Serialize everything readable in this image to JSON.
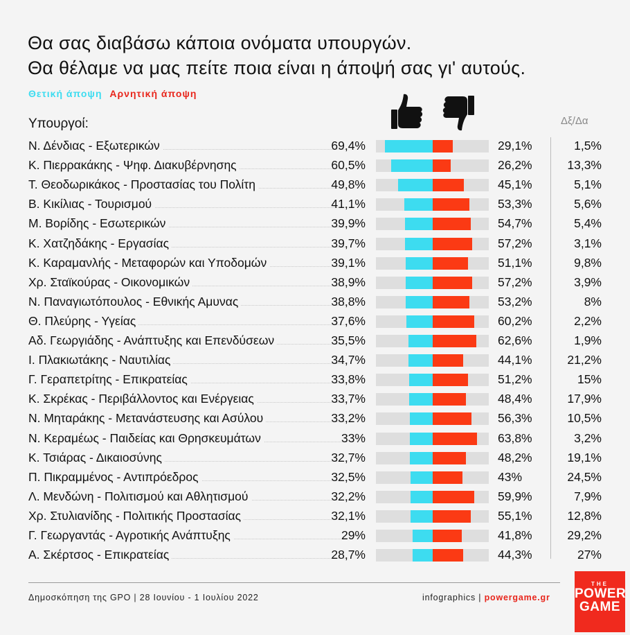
{
  "title_line1": "Θα σας διαβάσω κάποια ονόματα υπουργών.",
  "title_line2": "Θα θέλαμε να μας πείτε ποια είναι η άποψή σας γι' αυτούς.",
  "legend": {
    "positive": "Θετική άποψη",
    "negative": "Αρνητική άποψη"
  },
  "headers": {
    "ministers": "Υπουργοί:",
    "dk": "Δξ/Δα"
  },
  "colors": {
    "positive": "#3ddcf0",
    "negative": "#fb3a14",
    "track": "#dedede",
    "brand": "#f02a1e"
  },
  "icons": {
    "positive": "thumbs-up-icon",
    "negative": "thumbs-down-icon"
  },
  "footer": {
    "source": "Δημοσκόπηση της GPO | 28 Ιουνίου - 1 Ιουλίου 2022",
    "credit_prefix": "infographics | ",
    "credit_site": "powergame.gr"
  },
  "logo": {
    "the": "THE",
    "line1": "POWER",
    "line2": "GAME"
  },
  "chart_data": {
    "type": "bar",
    "orientation": "horizontal-diverging",
    "unit": "%",
    "categories": [
      "Ν. Δένδιας - Εξωτερικών",
      "Κ. Πιερρακάκης - Ψηφ. Διακυβέρνησης",
      "Τ. Θεοδωρικάκος - Προστασίας του Πολίτη",
      "Β. Κικίλιας - Τουρισμού",
      "Μ. Βορίδης - Εσωτερικών",
      "Κ. Χατζηδάκης - Εργασίας",
      "Κ. Καραμανλής - Μεταφορών και Υποδομών",
      "Χρ. Σταϊκούρας - Οικονομικών",
      "Ν. Παναγιωτόπουλος - Εθνικής Αμυνας",
      "Θ. Πλεύρης - Υγείας",
      "Αδ. Γεωργιάδης - Ανάπτυξης και Επενδύσεων",
      "Ι. Πλακιωτάκης - Ναυτιλίας",
      "Γ. Γεραπετρίτης - Επικρατείας",
      "Κ. Σκρέκας - Περιβάλλοντος και Ενέργειας",
      "Ν. Μηταράκης - Μετανάστευσης και Ασύλου",
      "Ν. Κεραμέως - Παιδείας και Θρησκευμάτων",
      "Κ. Τσιάρας - Δικαιοσύνης",
      "Π. Πικραμμένος - Αντιπρόεδρος",
      "Λ. Μενδώνη - Πολιτισμού και Αθλητισμού",
      "Χρ. Στυλιανίδης - Πολιτικής Προστασίας",
      "Γ. Γεωργαντάς - Αγροτικής Ανάπτυξης",
      "Α. Σκέρτσος - Επικρατείας"
    ],
    "series": [
      {
        "name": "Θετική άποψη",
        "values": [
          69.4,
          60.5,
          49.8,
          41.1,
          39.9,
          39.7,
          39.1,
          38.9,
          38.8,
          37.6,
          35.5,
          34.7,
          33.8,
          33.7,
          33.2,
          33,
          32.7,
          32.5,
          32.2,
          32.1,
          29,
          28.7
        ]
      },
      {
        "name": "Αρνητική άποψη",
        "values": [
          29.1,
          26.2,
          45.1,
          53.3,
          54.7,
          57.2,
          51.1,
          57.2,
          53.2,
          60.2,
          62.6,
          44.1,
          51.2,
          48.4,
          56.3,
          63.8,
          48.2,
          43,
          59.9,
          55.1,
          41.8,
          44.3
        ]
      },
      {
        "name": "Δξ/Δα",
        "values": [
          1.5,
          13.3,
          5.1,
          5.6,
          5.4,
          3.1,
          9.8,
          3.9,
          8,
          2.2,
          1.9,
          21.2,
          15,
          17.9,
          10.5,
          3.2,
          19.1,
          24.5,
          7.9,
          12.8,
          29.2,
          27
        ]
      }
    ],
    "labels": {
      "positive": [
        "69,4%",
        "60,5%",
        "49,8%",
        "41,1%",
        "39,9%",
        "39,7%",
        "39,1%",
        "38,9%",
        "38,8%",
        "37,6%",
        "35,5%",
        "34,7%",
        "33,8%",
        "33,7%",
        "33,2%",
        "33%",
        "32,7%",
        "32,5%",
        "32,2%",
        "32,1%",
        "29%",
        "28,7%"
      ],
      "negative": [
        "29,1%",
        "26,2%",
        "45,1%",
        "53,3%",
        "54,7%",
        "57,2%",
        "51,1%",
        "57,2%",
        "53,2%",
        "60,2%",
        "62,6%",
        "44,1%",
        "51,2%",
        "48,4%",
        "56,3%",
        "63,8%",
        "48,2%",
        "43%",
        "59,9%",
        "55,1%",
        "41,8%",
        "44,3%"
      ],
      "dk": [
        "1,5%",
        "13,3%",
        "5,1%",
        "5,6%",
        "5,4%",
        "3,1%",
        "9,8%",
        "3,9%",
        "8%",
        "2,2%",
        "1,9%",
        "21,2%",
        "15%",
        "17,9%",
        "10,5%",
        "3,2%",
        "19,1%",
        "24,5%",
        "7,9%",
        "12,8%",
        "29,2%",
        "27%"
      ]
    },
    "xlim": [
      0,
      100
    ],
    "grid": false,
    "legend": "top-left"
  }
}
